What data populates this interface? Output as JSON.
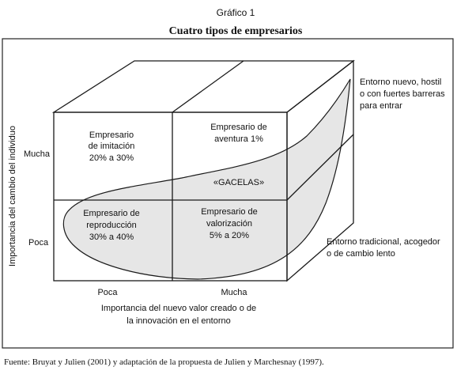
{
  "figure": {
    "label": "Gráfico 1",
    "title": "Cuatro tipos de empresarios",
    "source": "Fuente: Bruyat y Julien (2001) y adaptación de la propuesta de Julien y Marchesnay (1997)."
  },
  "axes": {
    "y_label": "Importancia del cambio del individuo",
    "y_high": "Mucha",
    "y_low": "Poca",
    "x_low": "Poca",
    "x_high": "Mucha",
    "x_label_line1": "Importancia del nuevo valor creado o de",
    "x_label_line2": "la innovación en el entorno"
  },
  "quadrants": {
    "imitacion": {
      "line1": "Empresario",
      "line2": "de imitación",
      "line3": "20% a 30%"
    },
    "aventura": {
      "line1": "Empresario de",
      "line2": "aventura 1%"
    },
    "gacelas": "«GACELAS»",
    "reproduccion": {
      "line1": "Empresario de",
      "line2": "reproducción",
      "line3": "30% a 40%"
    },
    "valorizacion": {
      "line1": "Empresario de",
      "line2": "valorización",
      "line3": "5% a 20%"
    }
  },
  "environments": {
    "hostile": {
      "line1": "Entorno nuevo, hostil",
      "line2": "o con fuertes barreras",
      "line3": "para entrar"
    },
    "traditional": {
      "line1": "Entorno tradicional, acogedor",
      "line2": "o de cambio lento"
    }
  },
  "colors": {
    "line": "#1a1a1a",
    "blob_fill": "#e6e6e6",
    "frame": "#222222"
  }
}
